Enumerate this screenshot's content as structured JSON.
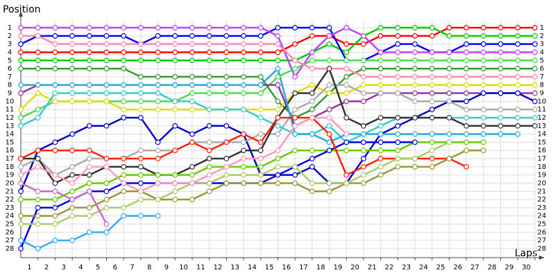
{
  "chart_data": {
    "type": "line",
    "y_label": "Position",
    "x_label": "Laps",
    "x": [
      0,
      1,
      2,
      3,
      4,
      5,
      6,
      7,
      8,
      9,
      10,
      11,
      12,
      13,
      14,
      15,
      16,
      17,
      18,
      19,
      20,
      21,
      22,
      23,
      24,
      25,
      26,
      27,
      28,
      29,
      30
    ],
    "xticks": [
      1,
      2,
      3,
      4,
      5,
      6,
      7,
      8,
      9,
      10,
      11,
      12,
      13,
      14,
      15,
      16,
      17,
      18,
      19,
      20,
      21,
      22,
      23,
      24,
      25,
      26,
      27,
      28,
      29,
      30
    ],
    "xlim": [
      0,
      30
    ],
    "ylim": [
      29,
      0
    ],
    "yticks": [
      1,
      2,
      3,
      4,
      5,
      6,
      7,
      8,
      9,
      10,
      11,
      12,
      13,
      14,
      15,
      16,
      17,
      18,
      19,
      20,
      21,
      22,
      23,
      24,
      25,
      26,
      27,
      28
    ],
    "grid": true,
    "series": [
      {
        "color": "#ff0000",
        "values": [
          4,
          4,
          4,
          4,
          4,
          4,
          4,
          4,
          4,
          4,
          4,
          4,
          4,
          4,
          4,
          4,
          3,
          2,
          2,
          3,
          3,
          2,
          2,
          2,
          2,
          1,
          1,
          1,
          1,
          1,
          1
        ]
      },
      {
        "color": "#00cc00",
        "values": [
          5,
          5,
          5,
          5,
          5,
          5,
          5,
          5,
          5,
          5,
          5,
          5,
          5,
          5,
          5,
          5,
          5,
          4,
          3,
          4,
          2,
          1,
          1,
          1,
          1,
          2,
          2,
          2,
          2,
          2,
          2
        ]
      },
      {
        "color": "#0000ff",
        "values": [
          3,
          2,
          2,
          2,
          2,
          2,
          2,
          3,
          2,
          2,
          2,
          2,
          2,
          2,
          2,
          1,
          1,
          1,
          1,
          5,
          5,
          4,
          3,
          3,
          4,
          4,
          3,
          3,
          3,
          3,
          3
        ]
      },
      {
        "color": "#bb44ff",
        "values": [
          1,
          1,
          1,
          1,
          1,
          1,
          1,
          1,
          1,
          1,
          1,
          1,
          1,
          1,
          1,
          2,
          7,
          4,
          2,
          1,
          2,
          4,
          4,
          4,
          4,
          4,
          4,
          4,
          4,
          4,
          4
        ]
      },
      {
        "color": "#44dd44",
        "values": [
          12,
          11,
          10,
          10,
          10,
          10,
          10,
          10,
          10,
          10,
          9,
          9,
          9,
          9,
          9,
          7,
          6,
          5,
          5,
          5,
          5,
          5,
          5,
          5,
          5,
          5,
          5,
          5,
          5,
          5,
          5
        ]
      },
      {
        "color": "#339933",
        "values": [
          6,
          6,
          6,
          6,
          6,
          6,
          6,
          7,
          7,
          7,
          7,
          7,
          7,
          7,
          7,
          10,
          12,
          11,
          9,
          7,
          6,
          6,
          6,
          6,
          6,
          6,
          6,
          6,
          6,
          6,
          6
        ]
      },
      {
        "color": "#ff88aa",
        "values": [
          2,
          2,
          3,
          3,
          3,
          3,
          3,
          3,
          3,
          3,
          3,
          3,
          3,
          3,
          3,
          3,
          5,
          6,
          6,
          6,
          7,
          7,
          7,
          7,
          7,
          7,
          7,
          7,
          7,
          7,
          7
        ]
      },
      {
        "color": "#dddd00",
        "values": [
          11,
          9,
          10,
          10,
          10,
          10,
          11,
          11,
          11,
          11,
          11,
          11,
          11,
          11,
          11,
          11,
          9,
          8,
          9,
          9,
          8,
          8,
          8,
          8,
          8,
          8,
          8,
          8,
          8,
          8,
          8
        ]
      },
      {
        "color": "#993399",
        "values": [
          9,
          8,
          8,
          8,
          8,
          8,
          8,
          8,
          8,
          8,
          8,
          8,
          8,
          8,
          8,
          8,
          13,
          12,
          11,
          10,
          10,
          9,
          9,
          9,
          9,
          9,
          9,
          9,
          9,
          9,
          9
        ]
      },
      {
        "color": "#0000cc",
        "values": [
          21,
          16,
          15,
          14,
          13,
          13,
          12,
          12,
          15,
          13,
          14,
          13,
          13,
          14,
          19,
          19,
          19,
          18,
          20,
          20,
          17,
          14,
          13,
          12,
          11,
          10,
          10,
          9,
          9,
          9,
          10
        ]
      },
      {
        "color": "#aaaaaa",
        "values": [
          18,
          17,
          19,
          18,
          17,
          17,
          17,
          16,
          16,
          16,
          15,
          15,
          15,
          15,
          14,
          14,
          11,
          10,
          8,
          8,
          9,
          9,
          9,
          10,
          10,
          10,
          11,
          11,
          11,
          11,
          11
        ]
      },
      {
        "color": "#33cccc",
        "values": [
          13,
          12,
          9,
          9,
          9,
          9,
          9,
          9,
          9,
          10,
          10,
          11,
          11,
          11,
          12,
          13,
          14,
          14,
          13,
          15,
          14,
          13,
          12,
          12,
          12,
          12,
          12,
          12,
          12,
          12,
          12
        ]
      },
      {
        "color": "#333333",
        "values": [
          17,
          17,
          20,
          19,
          19,
          18,
          18,
          18,
          19,
          19,
          18,
          17,
          17,
          16,
          16,
          12,
          9,
          9,
          6,
          12,
          13,
          12,
          12,
          12,
          12,
          12,
          13,
          13,
          13,
          13,
          13
        ]
      },
      {
        "color": "#22aadd",
        "values": [
          8,
          8,
          8,
          8,
          8,
          8,
          8,
          8,
          8,
          8,
          8,
          8,
          8,
          8,
          8,
          6,
          14,
          14,
          15,
          14,
          14,
          14,
          14,
          14,
          14,
          14,
          14,
          14,
          14,
          14,
          null
        ]
      },
      {
        "color": "#66cc00",
        "values": [
          22,
          22,
          22,
          21,
          20,
          20,
          19,
          19,
          19,
          19,
          19,
          18,
          18,
          18,
          18,
          17,
          16,
          16,
          16,
          16,
          16,
          16,
          16,
          15,
          15,
          15,
          15,
          15,
          null,
          null,
          null
        ]
      },
      {
        "color": "#0000ee",
        "values": [
          28,
          23,
          23,
          22,
          21,
          21,
          20,
          20,
          20,
          20,
          20,
          20,
          20,
          20,
          20,
          19,
          18,
          17,
          16,
          15,
          15,
          15,
          15,
          15,
          null,
          null,
          null,
          null,
          null,
          null,
          null
        ]
      },
      {
        "color": "#ff2200",
        "values": [
          17,
          16,
          16,
          16,
          16,
          17,
          17,
          17,
          17,
          16,
          15,
          16,
          15,
          14,
          15,
          12,
          12,
          12,
          14,
          19,
          18,
          17,
          17,
          17,
          17,
          17,
          18,
          null,
          null,
          null,
          null
        ]
      },
      {
        "color": "#999933",
        "values": [
          24,
          24,
          24,
          23,
          23,
          22,
          21,
          21,
          22,
          22,
          22,
          21,
          20,
          20,
          20,
          20,
          20,
          21,
          21,
          20,
          20,
          19,
          18,
          18,
          18,
          17,
          16,
          16,
          null,
          null,
          null
        ]
      },
      {
        "color": "#aacc66",
        "values": [
          25,
          25,
          25,
          24,
          24,
          23,
          23,
          22,
          22,
          21,
          20,
          20,
          19,
          19,
          19,
          18,
          18,
          20,
          20,
          20,
          19,
          18,
          17,
          17,
          16,
          15,
          null,
          null,
          null,
          null,
          null
        ]
      },
      {
        "color": "#ff99bb",
        "values": [
          19,
          18,
          19,
          20,
          18,
          18,
          20,
          21,
          20,
          20,
          20,
          19,
          18,
          17,
          17,
          16,
          13,
          12,
          12,
          14,
          null,
          null,
          null,
          null,
          null,
          null,
          null,
          null,
          null,
          null,
          null
        ]
      },
      {
        "color": "#33aaff",
        "values": [
          27,
          28,
          27,
          27,
          26,
          26,
          24,
          24,
          24,
          null,
          null,
          null,
          null,
          null,
          null,
          null,
          null,
          null,
          null,
          null,
          null,
          null,
          null,
          null,
          null,
          null,
          null,
          null,
          null,
          null,
          null
        ]
      },
      {
        "color": "#cc66cc",
        "values": [
          20,
          21,
          21,
          22,
          21,
          25,
          null,
          null,
          null,
          null,
          null,
          null,
          null,
          null,
          null,
          null,
          null,
          null,
          null,
          null,
          null,
          null,
          null,
          null,
          null,
          null,
          null,
          null,
          null,
          null,
          null
        ]
      }
    ]
  }
}
